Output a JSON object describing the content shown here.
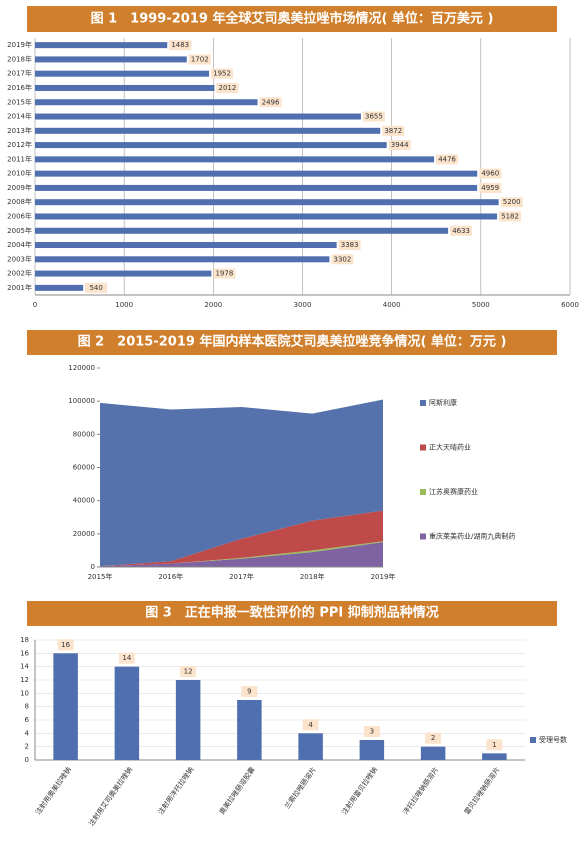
{
  "chart_data": [
    {
      "type": "hbar",
      "title": "图 1　1999-2019 年全球艾司奥美拉唑市场情况( 单位：百万美元 )",
      "categories": [
        "2019年",
        "2018年",
        "2017年",
        "2016年",
        "2015年",
        "2014年",
        "2013年",
        "2012年",
        "2011年",
        "2010年",
        "2009年",
        "2008年",
        "2006年",
        "2005年",
        "2004年",
        "2003年",
        "2002年",
        "2001年"
      ],
      "values": [
        1483,
        1702,
        1952,
        2012,
        2496,
        3655,
        3872,
        3944,
        4476,
        4960,
        4959,
        5200,
        5182,
        4633,
        3383,
        3302,
        1978,
        540
      ],
      "color": "#4f6fae",
      "label_color": "#fbe3cc",
      "xlim": [
        0,
        6000
      ],
      "xticks": [
        0,
        1000,
        2000,
        3000,
        4000,
        5000,
        6000
      ],
      "grid": true
    },
    {
      "type": "stacked_area",
      "title": "图 2　2015-2019 年国内样本医院艾司奥美拉唑竞争情况( 单位：万元 )",
      "x": [
        "2015年",
        "2016年",
        "2017年",
        "2018年",
        "2019年"
      ],
      "series": [
        {
          "name": "阿斯利康",
          "color": "#5572ad",
          "values": [
            98500,
            91500,
            79500,
            64500,
            67000
          ]
        },
        {
          "name": "正大天晴药业",
          "color": "#bf4a4a",
          "values": [
            0,
            1500,
            11500,
            18000,
            18500
          ]
        },
        {
          "name": "江苏奥赛康药业",
          "color": "#9bbb59",
          "values": [
            0,
            0,
            500,
            1000,
            500
          ]
        },
        {
          "name": "重庆莱美药业/湖南九典制药",
          "color": "#7e62a1",
          "values": [
            500,
            2000,
            5000,
            9000,
            15000
          ]
        }
      ],
      "ylim": [
        0,
        120000
      ],
      "yticks": [
        0,
        20000,
        40000,
        60000,
        80000,
        100000,
        120000
      ]
    },
    {
      "type": "bar",
      "title": "图 3　正在申报一致性评价的 PPI 抑制剂品种情况",
      "categories": [
        "注射用奥美拉唑钠",
        "注射用艾司奥美拉唑钠",
        "注射用泮托拉唑钠",
        "奥美拉唑肠溶胶囊",
        "兰索拉唑肠溶片",
        "注射用雷贝拉唑钠",
        "泮托拉唑钠肠溶片",
        "雷贝拉唑钠肠溶片"
      ],
      "series": [
        {
          "name": "受理号数",
          "color": "#4f6fae",
          "values": [
            16,
            14,
            12,
            9,
            4,
            3,
            2,
            1
          ]
        }
      ],
      "label_color": "#fbe3cc",
      "ylim": [
        0,
        18
      ],
      "yticks": [
        0,
        2,
        4,
        6,
        8,
        10,
        12,
        14,
        16,
        18
      ],
      "grid": true
    }
  ]
}
